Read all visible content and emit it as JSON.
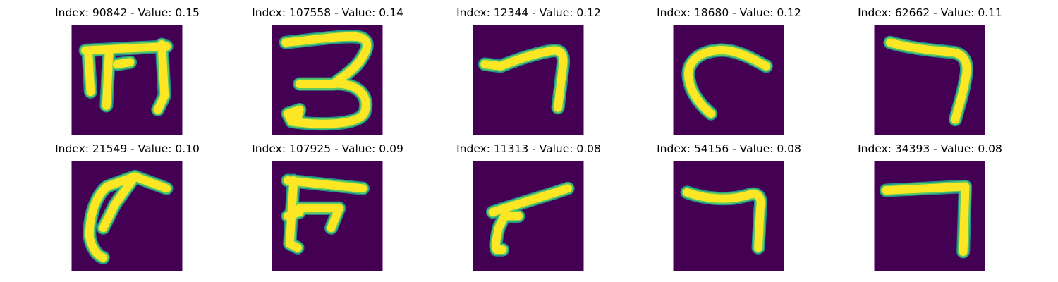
{
  "colors": {
    "background": "#440154",
    "stroke_edge": "#21918c",
    "stroke_mid": "#5ec962",
    "stroke_core": "#fde725",
    "text": "#000000"
  },
  "panels": [
    {
      "title": "Index: 90842 - Value: 0.15",
      "index": 90842,
      "value": 0.15
    },
    {
      "title": "Index: 107558 - Value: 0.14",
      "index": 107558,
      "value": 0.14
    },
    {
      "title": "Index: 12344 - Value: 0.12",
      "index": 12344,
      "value": 0.12
    },
    {
      "title": "Index: 18680 - Value: 0.12",
      "index": 18680,
      "value": 0.12
    },
    {
      "title": "Index: 62662 - Value: 0.11",
      "index": 62662,
      "value": 0.11
    },
    {
      "title": "Index: 21549 - Value: 0.10",
      "index": 21549,
      "value": 0.1
    },
    {
      "title": "Index: 107925 - Value: 0.09",
      "index": 107925,
      "value": 0.09
    },
    {
      "title": "Index: 11313 - Value: 0.08",
      "index": 11313,
      "value": 0.08
    },
    {
      "title": "Index: 54156 - Value: 0.08",
      "index": 54156,
      "value": 0.08
    },
    {
      "title": "Index: 34393 - Value: 0.08",
      "index": 34393,
      "value": 0.08
    }
  ]
}
